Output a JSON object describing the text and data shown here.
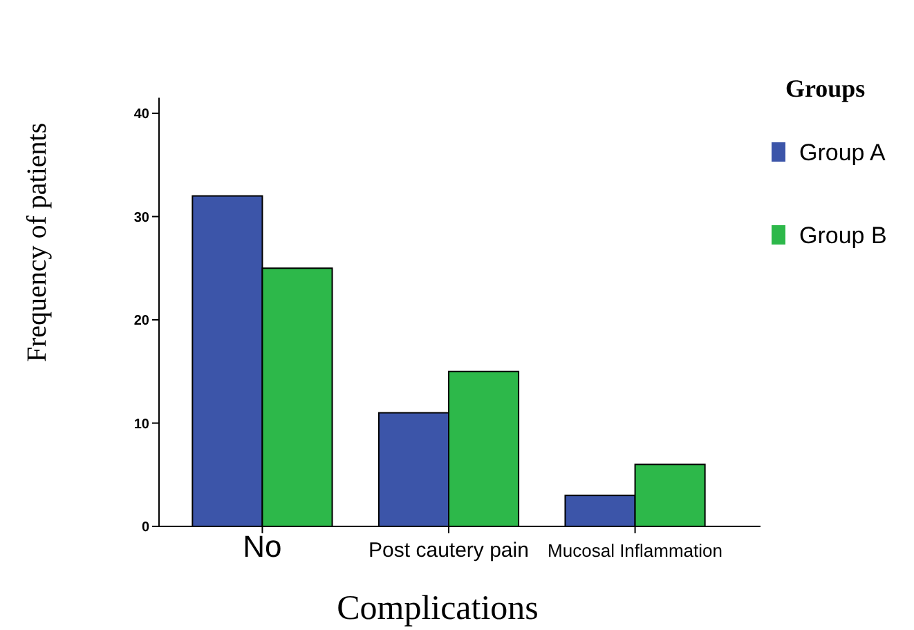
{
  "chart_data": {
    "type": "bar",
    "xlabel": "Complications",
    "ylabel": "Frequency  of  patients",
    "legend_title": "Groups",
    "categories": [
      "No",
      "Post cautery pain",
      "Mucosal Inflammation"
    ],
    "series": [
      {
        "name": "Group A",
        "color": "#3c55a9",
        "values": [
          32,
          11,
          3
        ]
      },
      {
        "name": "Group B",
        "color": "#2db84a",
        "values": [
          25,
          15,
          6
        ]
      }
    ],
    "ylim": [
      0,
      41.5
    ],
    "yticks": [
      0,
      10,
      20,
      30,
      40
    ],
    "grid": false,
    "legend": "right"
  }
}
